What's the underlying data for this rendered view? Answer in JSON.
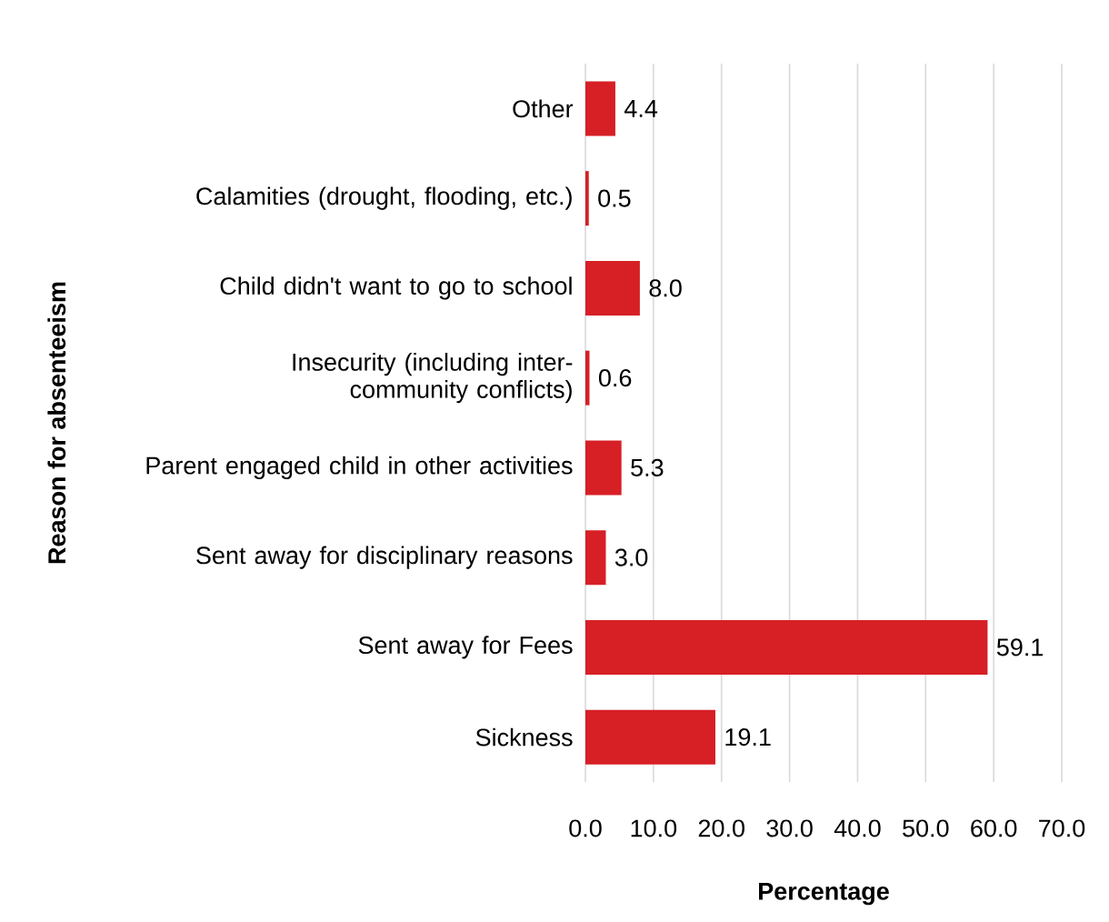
{
  "chart_data": {
    "type": "bar",
    "orientation": "horizontal",
    "xlabel": "Percentage",
    "ylabel": "Reason for absenteeism",
    "categories": [
      "Other",
      "Calamities (drought, flooding, etc.)",
      "Child didn't want to go to school",
      "Insecurity (including inter-community conflicts)",
      "Parent engaged child in other activities",
      "Sent away for disciplinary reasons",
      "Sent away for Fees",
      "Sickness"
    ],
    "values": [
      4.4,
      0.5,
      8.0,
      0.6,
      5.3,
      3.0,
      59.1,
      19.1
    ],
    "value_labels": [
      "4.4",
      "0.5",
      "8.0",
      "0.6",
      "5.3",
      "3.0",
      "59.1",
      "19.1"
    ],
    "color": "#d71f26",
    "grid": "x",
    "xlim": [
      0,
      70
    ],
    "xticks": [
      {
        "value": 0,
        "label": "0.0"
      },
      {
        "value": 10,
        "label": "10.0"
      },
      {
        "value": 20,
        "label": "20.0"
      },
      {
        "value": 30,
        "label": "30.0"
      },
      {
        "value": 40,
        "label": "40.0"
      },
      {
        "value": 50,
        "label": "50.0"
      },
      {
        "value": 60,
        "label": "60.0"
      },
      {
        "value": 70,
        "label": "70.0"
      }
    ]
  }
}
